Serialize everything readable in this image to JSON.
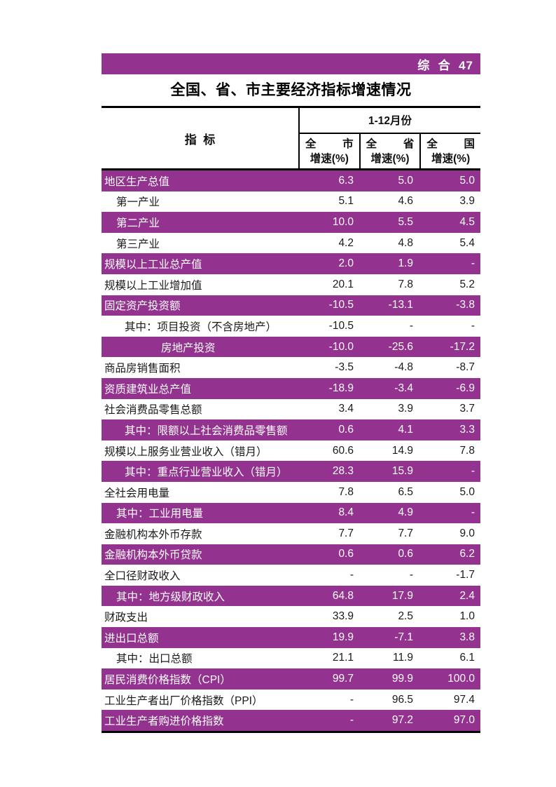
{
  "colors": {
    "accent": "#93338F"
  },
  "page": {
    "header_bar_label": "综  合  47",
    "title": "全国、省、市主要经济指标增速情况"
  },
  "table": {
    "indicator_header": "指  标",
    "period_header": "1-12月份",
    "columns": [
      {
        "region": "全 市",
        "unit": "增速(%)"
      },
      {
        "region": "全 省",
        "unit": "增速(%)"
      },
      {
        "region": "全 国",
        "unit": "增速(%)"
      }
    ],
    "rows": [
      {
        "label": "地区生产总值",
        "indent": 0,
        "city": "6.3",
        "province": "5.0",
        "national": "5.0"
      },
      {
        "label": "第一产业",
        "indent": 1,
        "city": "5.1",
        "province": "4.6",
        "national": "3.9"
      },
      {
        "label": "第二产业",
        "indent": 1,
        "city": "10.0",
        "province": "5.5",
        "national": "4.5"
      },
      {
        "label": "第三产业",
        "indent": 1,
        "city": "4.2",
        "province": "4.8",
        "national": "5.4"
      },
      {
        "label": "规模以上工业总产值",
        "indent": 0,
        "city": "2.0",
        "province": "1.9",
        "national": "-"
      },
      {
        "label": "规模以上工业增加值",
        "indent": 0,
        "city": "20.1",
        "province": "7.8",
        "national": "5.2"
      },
      {
        "label": "固定资产投资额",
        "indent": 0,
        "city": "-10.5",
        "province": "-13.1",
        "national": "-3.8"
      },
      {
        "label": "其中：项目投资（不含房地产）",
        "indent": 2,
        "city": "-10.5",
        "province": "-",
        "national": "-"
      },
      {
        "label": "房地产投资",
        "indent": 3,
        "city": "-10.0",
        "province": "-25.6",
        "national": "-17.2"
      },
      {
        "label": "商品房销售面积",
        "indent": 0,
        "city": "-3.5",
        "province": "-4.8",
        "national": "-8.7"
      },
      {
        "label": "资质建筑业总产值",
        "indent": 0,
        "city": "-18.9",
        "province": "-3.4",
        "national": "-6.9"
      },
      {
        "label": "社会消费品零售总额",
        "indent": 0,
        "city": "3.4",
        "province": "3.9",
        "national": "3.7"
      },
      {
        "label": "其中：限额以上社会消费品零售额",
        "indent": 2,
        "city": "0.6",
        "province": "4.1",
        "national": "3.3"
      },
      {
        "label": "规模以上服务业营业收入（错月）",
        "indent": 0,
        "city": "60.6",
        "province": "14.9",
        "national": "7.8"
      },
      {
        "label": "其中：重点行业营业收入（错月）",
        "indent": 2,
        "city": "28.3",
        "province": "15.9",
        "national": "-"
      },
      {
        "label": "全社会用电量",
        "indent": 0,
        "city": "7.8",
        "province": "6.5",
        "national": "5.0"
      },
      {
        "label": "其中：工业用电量",
        "indent": 1,
        "city": "8.4",
        "province": "4.9",
        "national": "-"
      },
      {
        "label": "金融机构本外币存款",
        "indent": 0,
        "city": "7.7",
        "province": "7.7",
        "national": "9.0"
      },
      {
        "label": "金融机构本外币贷款",
        "indent": 0,
        "city": "0.6",
        "province": "0.6",
        "national": "6.2"
      },
      {
        "label": "全口径财政收入",
        "indent": 0,
        "city": "-",
        "province": "-",
        "national": "-1.7"
      },
      {
        "label": "其中：地方级财政收入",
        "indent": 1,
        "city": "64.8",
        "province": "17.9",
        "national": "2.4"
      },
      {
        "label": "财政支出",
        "indent": 0,
        "city": "33.9",
        "province": "2.5",
        "national": "1.0"
      },
      {
        "label": "进出口总额",
        "indent": 0,
        "city": "19.9",
        "province": "-7.1",
        "national": "3.8"
      },
      {
        "label": "其中：出口总额",
        "indent": 1,
        "city": "21.1",
        "province": "11.9",
        "national": "6.1"
      },
      {
        "label": "居民消费价格指数（CPI）",
        "indent": 0,
        "city": "99.7",
        "province": "99.9",
        "national": "100.0"
      },
      {
        "label": "工业生产者出厂价格指数（PPI）",
        "indent": 0,
        "city": "-",
        "province": "96.5",
        "national": "97.4"
      },
      {
        "label": "工业生产者购进价格指数",
        "indent": 0,
        "city": "-",
        "province": "97.2",
        "national": "97.0"
      }
    ]
  }
}
